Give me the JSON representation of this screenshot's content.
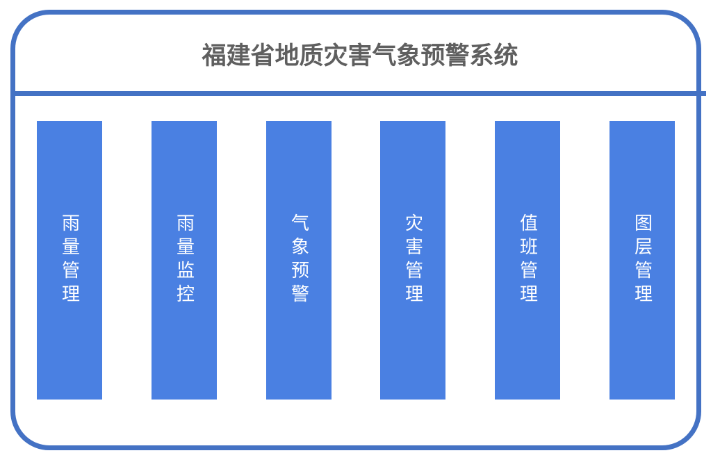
{
  "title": "福建省地质灾害气象预警系统",
  "colors": {
    "border": "#4472c4",
    "module": "#4a80e2",
    "title": "#5f5f5f"
  },
  "modules": [
    {
      "label": "雨量管理"
    },
    {
      "label": "雨量监控"
    },
    {
      "label": "气象预警"
    },
    {
      "label": "灾害管理"
    },
    {
      "label": "值班管理"
    },
    {
      "label": "图层管理"
    }
  ]
}
